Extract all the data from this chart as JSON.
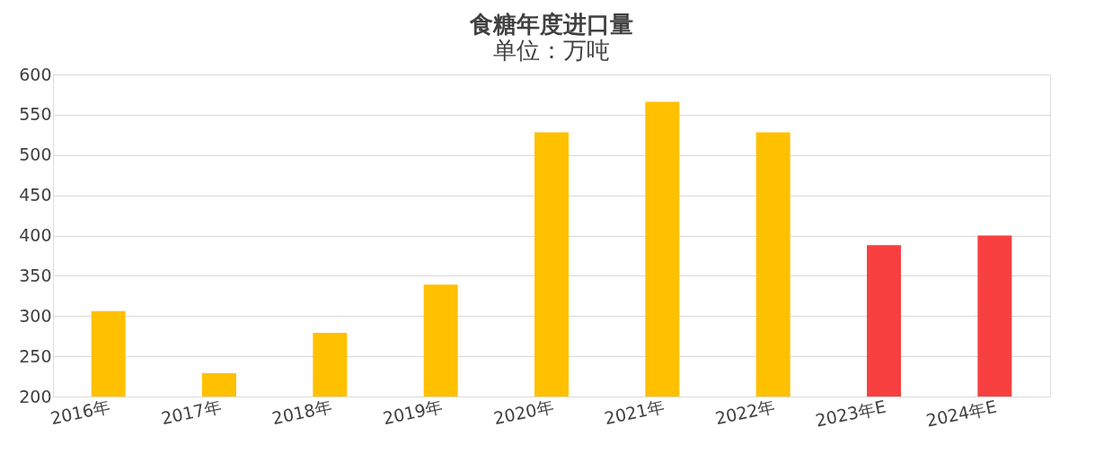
{
  "chart_data": {
    "type": "bar",
    "title": "食糖年度进口量",
    "subtitle": "单位：万吨",
    "categories": [
      "2016年",
      "2017年",
      "2018年",
      "2019年",
      "2020年",
      "2021年",
      "2022年",
      "2023年E",
      "2024年E"
    ],
    "values": [
      306,
      229,
      279,
      339,
      528,
      566,
      528,
      388,
      400
    ],
    "colors": [
      "#ffc000",
      "#ffc000",
      "#ffc000",
      "#ffc000",
      "#ffc000",
      "#ffc000",
      "#ffc000",
      "#f84040",
      "#f84040"
    ],
    "ylim": [
      200,
      600
    ],
    "yticks": [
      200,
      250,
      300,
      350,
      400,
      450,
      500,
      550,
      600
    ],
    "grid": "y"
  }
}
